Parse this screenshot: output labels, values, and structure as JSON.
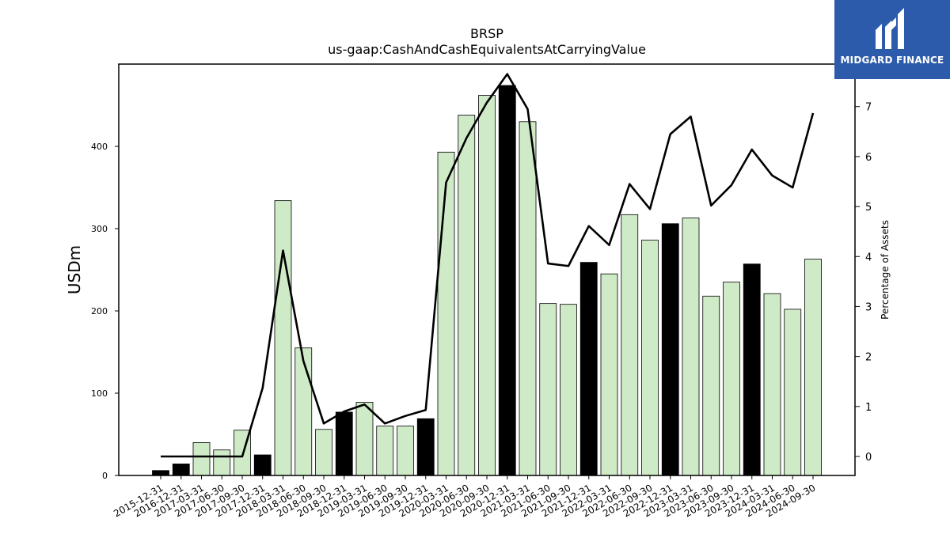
{
  "brand": {
    "name": "MIDGARD FINANCE",
    "bg_color": "#2d5bab"
  },
  "chart_data": {
    "type": "bar",
    "title": "BRSP",
    "subtitle": "us-gaap:CashAndCashEquivalentsAtCarryingValue",
    "ylabel": "USDm",
    "y2label": "Percentage of Assets",
    "ylim": [
      0,
      500
    ],
    "y2lim": [
      -0.38,
      7.85
    ],
    "yticks": [
      0,
      100,
      200,
      300,
      400
    ],
    "y2ticks": [
      0,
      1,
      2,
      3,
      4,
      5,
      6,
      7
    ],
    "categories": [
      "2015-12-31",
      "2016-12-31",
      "2017-03-31",
      "2017-06-30",
      "2017-09-30",
      "2017-12-31",
      "2018-03-31",
      "2018-06-30",
      "2018-09-30",
      "2018-12-31",
      "2019-03-31",
      "2019-06-30",
      "2019-09-30",
      "2019-12-31",
      "2020-03-31",
      "2020-06-30",
      "2020-09-30",
      "2020-12-31",
      "2021-03-31",
      "2021-06-30",
      "2021-09-30",
      "2021-12-31",
      "2022-03-31",
      "2022-06-30",
      "2022-09-30",
      "2022-12-31",
      "2023-03-31",
      "2023-06-30",
      "2023-09-30",
      "2023-12-31",
      "2024-03-31",
      "2024-06-30",
      "2024-09-30"
    ],
    "series": [
      {
        "type": "bar",
        "values": [
          6,
          14,
          40,
          31,
          55,
          25,
          334,
          155,
          56,
          77,
          89,
          60,
          60,
          69,
          393,
          438,
          462,
          474,
          430,
          209,
          208,
          259,
          245,
          317,
          286,
          306,
          313,
          218,
          235,
          257,
          221,
          202,
          263
        ],
        "highlight": [
          true,
          true,
          false,
          false,
          false,
          true,
          false,
          false,
          false,
          true,
          false,
          false,
          false,
          true,
          false,
          false,
          false,
          true,
          false,
          false,
          false,
          true,
          false,
          false,
          false,
          true,
          false,
          false,
          false,
          true,
          false,
          false,
          false
        ],
        "color": "#cfeac7",
        "highlight_color": "#000000"
      },
      {
        "type": "line",
        "axis": "right",
        "values": [
          0.0,
          0.0,
          0.0,
          0.0,
          0.0,
          1.37,
          4.12,
          1.91,
          0.66,
          0.9,
          1.04,
          0.66,
          0.81,
          0.93,
          5.48,
          6.37,
          7.08,
          7.65,
          6.95,
          3.86,
          3.81,
          4.61,
          4.23,
          5.45,
          4.95,
          6.45,
          6.8,
          5.02,
          5.43,
          6.14,
          5.62,
          5.38,
          6.87
        ],
        "color": "#000000"
      }
    ],
    "grid": false
  }
}
